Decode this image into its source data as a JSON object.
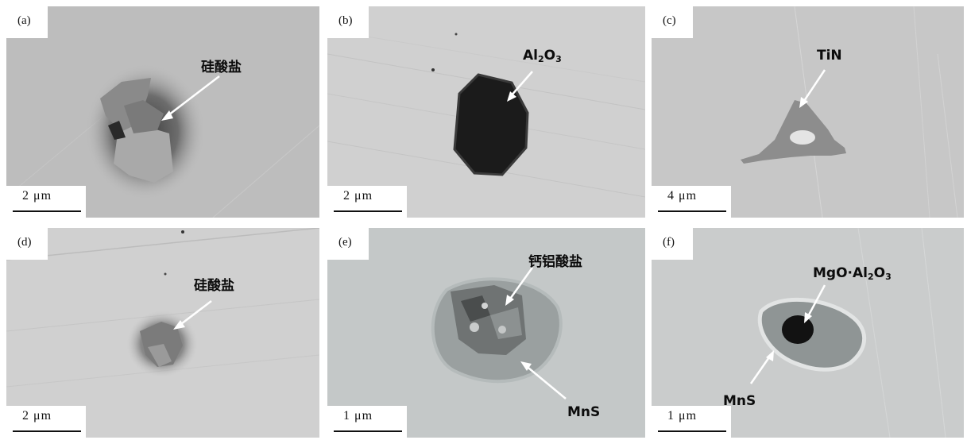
{
  "panels": {
    "a": {
      "label": "(a)",
      "scale": "2 μm",
      "annotations": [
        "硅酸盐"
      ]
    },
    "b": {
      "label": "(b)",
      "scale": "2 μm",
      "annotations": [
        {
          "base": "Al",
          "sub1": "2",
          "mid": "O",
          "sub2": "3"
        }
      ]
    },
    "c": {
      "label": "(c)",
      "scale": "4 μm",
      "annotations": [
        "TiN"
      ]
    },
    "d": {
      "label": "(d)",
      "scale": "2 μm",
      "annotations": [
        "硅酸盐"
      ]
    },
    "e": {
      "label": "(e)",
      "scale": "1 μm",
      "annotations": [
        "钙铝酸盐",
        "MnS"
      ]
    },
    "f": {
      "label": "(f)",
      "scale": "1 μm",
      "annotations": [
        {
          "base": "MgO·Al",
          "sub1": "2",
          "mid": "O",
          "sub2": "3"
        },
        "MnS"
      ]
    }
  }
}
